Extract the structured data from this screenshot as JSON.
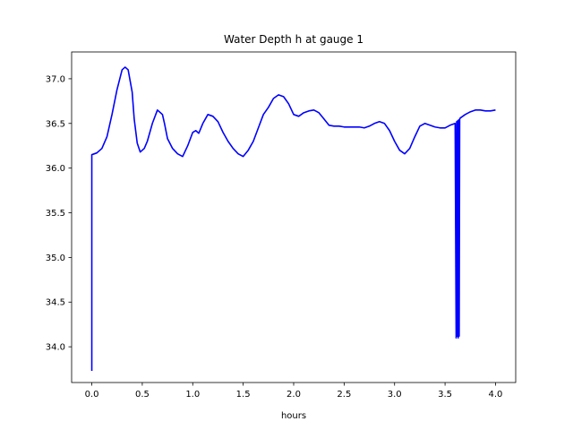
{
  "chart_data": {
    "type": "line",
    "title": "Water Depth h at gauge 1",
    "xlabel": "hours",
    "ylabel": "",
    "xlim": [
      -0.2,
      4.2
    ],
    "ylim": [
      33.6,
      37.3
    ],
    "xticks": [
      0.0,
      0.5,
      1.0,
      1.5,
      2.0,
      2.5,
      3.0,
      3.5,
      4.0
    ],
    "xtick_labels": [
      "0.0",
      "0.5",
      "1.0",
      "1.5",
      "2.0",
      "2.5",
      "3.0",
      "3.5",
      "4.0"
    ],
    "yticks": [
      34.0,
      34.5,
      35.0,
      35.5,
      36.0,
      36.5,
      37.0
    ],
    "ytick_labels": [
      "34.0",
      "34.5",
      "35.0",
      "35.5",
      "36.0",
      "36.5",
      "37.0"
    ],
    "grid": false,
    "series": [
      {
        "color": "#0000ff",
        "x": [
          0.0,
          0.0,
          0.05,
          0.1,
          0.15,
          0.2,
          0.25,
          0.3,
          0.33,
          0.36,
          0.4,
          0.42,
          0.45,
          0.48,
          0.52,
          0.55,
          0.6,
          0.65,
          0.7,
          0.72,
          0.75,
          0.8,
          0.85,
          0.9,
          0.95,
          1.0,
          1.03,
          1.06,
          1.1,
          1.15,
          1.2,
          1.25,
          1.3,
          1.35,
          1.4,
          1.45,
          1.5,
          1.55,
          1.6,
          1.65,
          1.7,
          1.75,
          1.8,
          1.85,
          1.9,
          1.95,
          2.0,
          2.05,
          2.1,
          2.15,
          2.2,
          2.25,
          2.3,
          2.35,
          2.4,
          2.45,
          2.5,
          2.55,
          2.6,
          2.65,
          2.7,
          2.75,
          2.8,
          2.85,
          2.9,
          2.95,
          3.0,
          3.05,
          3.1,
          3.15,
          3.2,
          3.25,
          3.3,
          3.35,
          3.4,
          3.45,
          3.5,
          3.55,
          3.6,
          3.61,
          3.615,
          3.62,
          3.625,
          3.63,
          3.635,
          3.64,
          3.645,
          3.65,
          3.7,
          3.75,
          3.8,
          3.85,
          3.9,
          3.95,
          4.0
        ],
        "y": [
          33.73,
          36.15,
          36.17,
          36.22,
          36.35,
          36.6,
          36.88,
          37.1,
          37.13,
          37.1,
          36.85,
          36.55,
          36.28,
          36.18,
          36.22,
          36.3,
          36.5,
          36.65,
          36.6,
          36.5,
          36.33,
          36.22,
          36.16,
          36.13,
          36.25,
          36.4,
          36.42,
          36.39,
          36.5,
          36.6,
          36.58,
          36.52,
          36.4,
          36.3,
          36.22,
          36.16,
          36.13,
          36.2,
          36.3,
          36.45,
          36.6,
          36.68,
          36.78,
          36.82,
          36.8,
          36.72,
          36.6,
          36.58,
          36.62,
          36.64,
          36.65,
          36.62,
          36.55,
          36.48,
          36.47,
          36.47,
          36.46,
          36.46,
          36.46,
          36.46,
          36.45,
          36.47,
          36.5,
          36.52,
          36.5,
          36.42,
          36.3,
          36.2,
          36.16,
          36.22,
          36.35,
          36.47,
          36.5,
          36.48,
          36.46,
          36.45,
          36.45,
          36.48,
          36.5,
          34.1,
          36.52,
          34.12,
          36.53,
          34.1,
          36.54,
          34.12,
          36.55,
          36.56,
          36.6,
          36.63,
          36.65,
          36.65,
          36.64,
          36.64,
          36.65
        ]
      }
    ]
  }
}
